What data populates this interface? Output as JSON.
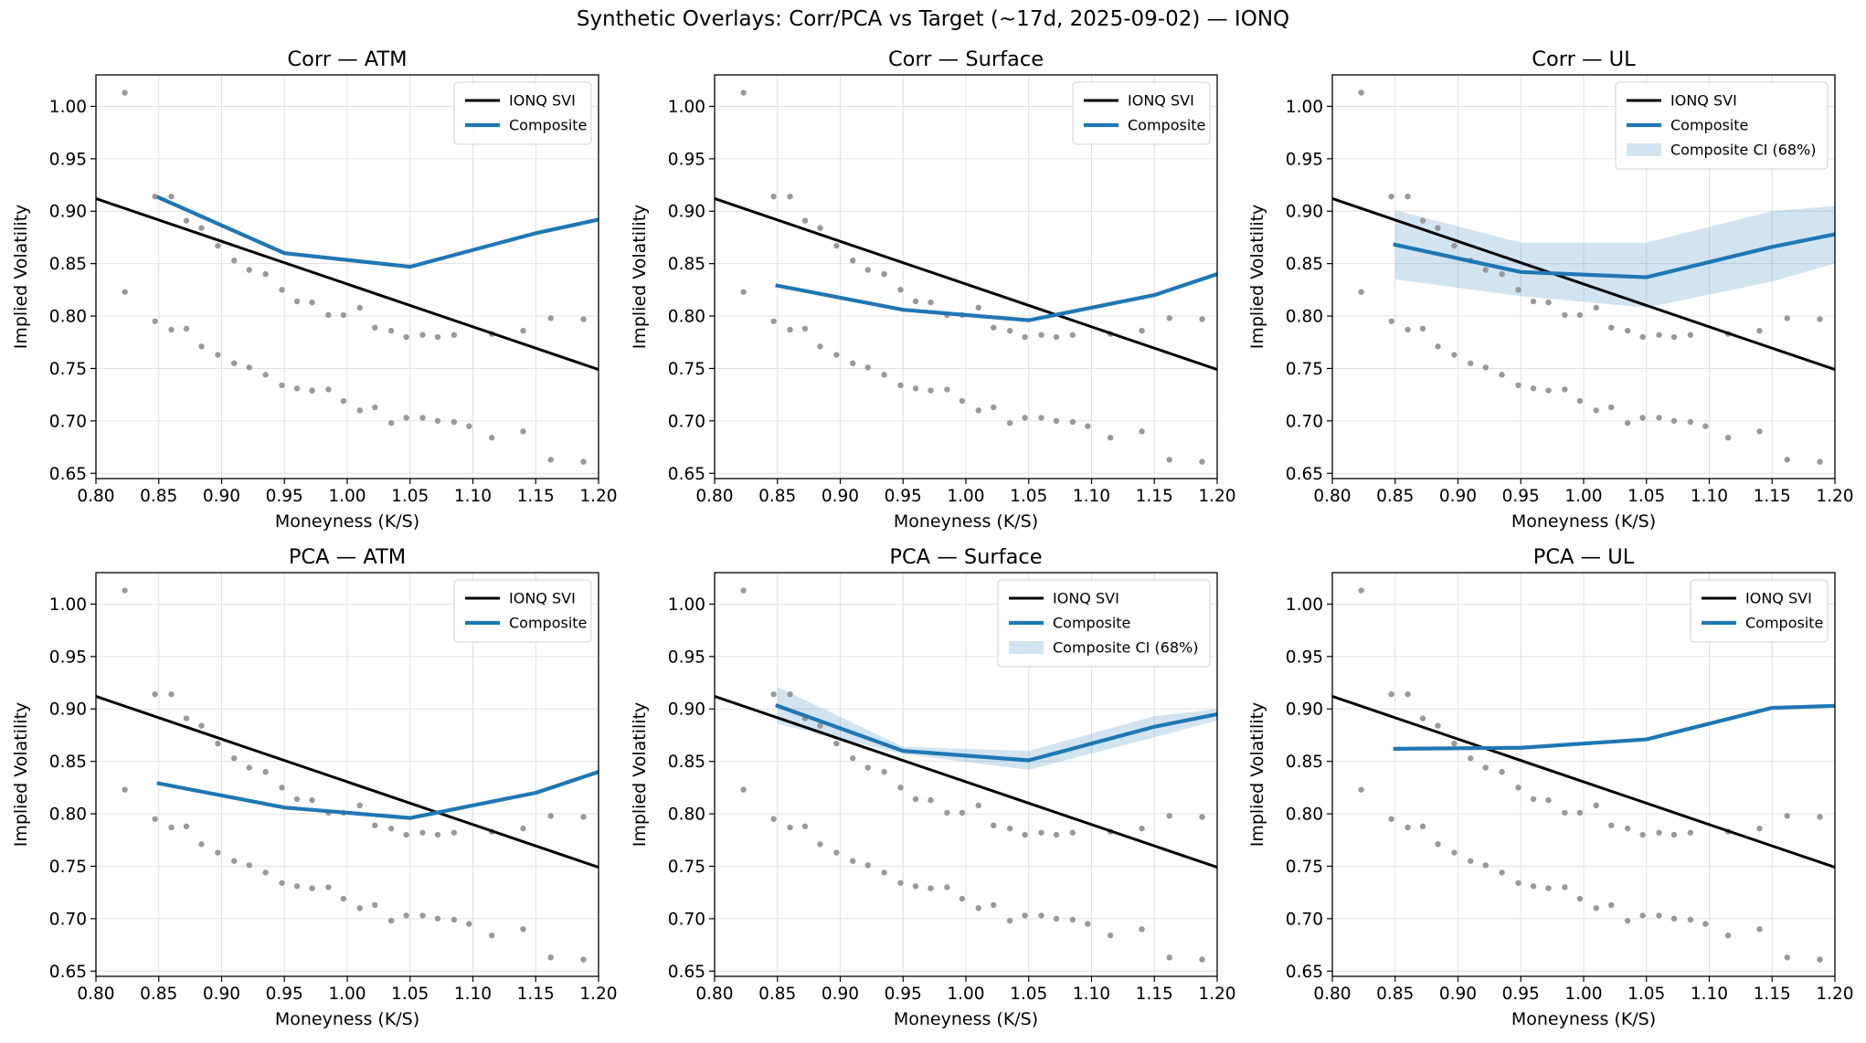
{
  "figure": {
    "suptitle": "Synthetic Overlays: Corr/PCA vs Target (~17d, 2025-09-02) — IONQ"
  },
  "colors": {
    "svi": "#000000",
    "composite": "#1f77b4",
    "ci": "#1f77b4",
    "market": "#999999",
    "grid": "#e0e0e0"
  },
  "market_points": {
    "upper": {
      "x": [
        0.823,
        0.847,
        0.86,
        0.872,
        0.884,
        0.897,
        0.91,
        0.922,
        0.935,
        0.948,
        0.96,
        0.972,
        0.985,
        0.997,
        1.01,
        1.022,
        1.035,
        1.047,
        1.06,
        1.072,
        1.085,
        1.115,
        1.14,
        1.162,
        1.188
      ],
      "y": [
        1.013,
        0.914,
        0.914,
        0.891,
        0.884,
        0.867,
        0.853,
        0.844,
        0.84,
        0.825,
        0.814,
        0.813,
        0.801,
        0.801,
        0.808,
        0.789,
        0.786,
        0.78,
        0.782,
        0.78,
        0.782,
        0.783,
        0.786,
        0.798,
        0.797
      ]
    },
    "lower": {
      "x": [
        0.823,
        0.847,
        0.86,
        0.872,
        0.884,
        0.897,
        0.91,
        0.922,
        0.935,
        0.948,
        0.96,
        0.972,
        0.985,
        0.997,
        1.01,
        1.022,
        1.035,
        1.047,
        1.06,
        1.072,
        1.085,
        1.097,
        1.115,
        1.14,
        1.162,
        1.188
      ],
      "y": [
        0.823,
        0.795,
        0.787,
        0.788,
        0.771,
        0.763,
        0.755,
        0.751,
        0.744,
        0.734,
        0.731,
        0.729,
        0.73,
        0.719,
        0.71,
        0.713,
        0.698,
        0.703,
        0.703,
        0.7,
        0.699,
        0.695,
        0.684,
        0.69,
        0.663,
        0.661
      ]
    }
  },
  "chart_data": [
    {
      "type": "line",
      "title": "Corr — ATM",
      "xlabel": "Moneyness (K/S)",
      "ylabel": "Implied Volatility",
      "xlim": [
        0.8,
        1.2
      ],
      "ylim": [
        0.645,
        1.03
      ],
      "xticks": [
        "0.80",
        "0.85",
        "0.90",
        "0.95",
        "1.00",
        "1.05",
        "1.10",
        "1.15",
        "1.20"
      ],
      "yticks": [
        "0.65",
        "0.70",
        "0.75",
        "0.80",
        "0.85",
        "0.90",
        "0.95",
        "1.00"
      ],
      "grid": true,
      "legend": "top-right",
      "series": [
        {
          "name": "IONQ SVI",
          "x": [
            0.8,
            1.2
          ],
          "y": [
            0.912,
            0.749
          ]
        },
        {
          "name": "Composite",
          "x": [
            0.85,
            0.95,
            1.05,
            1.15,
            1.2
          ],
          "y": [
            0.913,
            0.86,
            0.847,
            0.879,
            0.892
          ]
        }
      ]
    },
    {
      "type": "line",
      "title": "Corr — Surface",
      "xlabel": "Moneyness (K/S)",
      "ylabel": "Implied Volatility",
      "xlim": [
        0.8,
        1.2
      ],
      "ylim": [
        0.645,
        1.03
      ],
      "xticks": [
        "0.80",
        "0.85",
        "0.90",
        "0.95",
        "1.00",
        "1.05",
        "1.10",
        "1.15",
        "1.20"
      ],
      "yticks": [
        "0.65",
        "0.70",
        "0.75",
        "0.80",
        "0.85",
        "0.90",
        "0.95",
        "1.00"
      ],
      "grid": true,
      "legend": "top-right",
      "series": [
        {
          "name": "IONQ SVI",
          "x": [
            0.8,
            1.2
          ],
          "y": [
            0.912,
            0.749
          ]
        },
        {
          "name": "Composite",
          "x": [
            0.85,
            0.95,
            1.05,
            1.15,
            1.2
          ],
          "y": [
            0.829,
            0.806,
            0.796,
            0.82,
            0.84
          ]
        }
      ]
    },
    {
      "type": "line",
      "title": "Corr — UL",
      "xlabel": "Moneyness (K/S)",
      "ylabel": "Implied Volatility",
      "xlim": [
        0.8,
        1.2
      ],
      "ylim": [
        0.645,
        1.03
      ],
      "xticks": [
        "0.80",
        "0.85",
        "0.90",
        "0.95",
        "1.00",
        "1.05",
        "1.10",
        "1.15",
        "1.20"
      ],
      "yticks": [
        "0.65",
        "0.70",
        "0.75",
        "0.80",
        "0.85",
        "0.90",
        "0.95",
        "1.00"
      ],
      "grid": true,
      "legend": "top-right",
      "ci_label": "Composite CI (68%)",
      "ci": {
        "x": [
          0.85,
          0.95,
          1.05,
          1.15,
          1.2
        ],
        "lower": [
          0.835,
          0.819,
          0.808,
          0.833,
          0.85
        ],
        "upper": [
          0.901,
          0.87,
          0.87,
          0.9,
          0.905
        ]
      },
      "series": [
        {
          "name": "IONQ SVI",
          "x": [
            0.8,
            1.2
          ],
          "y": [
            0.912,
            0.749
          ]
        },
        {
          "name": "Composite",
          "x": [
            0.85,
            0.95,
            1.05,
            1.15,
            1.2
          ],
          "y": [
            0.868,
            0.842,
            0.837,
            0.866,
            0.878
          ]
        }
      ]
    },
    {
      "type": "line",
      "title": "PCA — ATM",
      "xlabel": "Moneyness (K/S)",
      "ylabel": "Implied Volatility",
      "xlim": [
        0.8,
        1.2
      ],
      "ylim": [
        0.645,
        1.03
      ],
      "xticks": [
        "0.80",
        "0.85",
        "0.90",
        "0.95",
        "1.00",
        "1.05",
        "1.10",
        "1.15",
        "1.20"
      ],
      "yticks": [
        "0.65",
        "0.70",
        "0.75",
        "0.80",
        "0.85",
        "0.90",
        "0.95",
        "1.00"
      ],
      "grid": true,
      "legend": "top-right",
      "series": [
        {
          "name": "IONQ SVI",
          "x": [
            0.8,
            1.2
          ],
          "y": [
            0.912,
            0.749
          ]
        },
        {
          "name": "Composite",
          "x": [
            0.85,
            0.95,
            1.05,
            1.15,
            1.2
          ],
          "y": [
            0.829,
            0.806,
            0.796,
            0.82,
            0.84
          ]
        }
      ]
    },
    {
      "type": "line",
      "title": "PCA — Surface",
      "xlabel": "Moneyness (K/S)",
      "ylabel": "Implied Volatility",
      "xlim": [
        0.8,
        1.2
      ],
      "ylim": [
        0.645,
        1.03
      ],
      "xticks": [
        "0.80",
        "0.85",
        "0.90",
        "0.95",
        "1.00",
        "1.05",
        "1.10",
        "1.15",
        "1.20"
      ],
      "yticks": [
        "0.65",
        "0.70",
        "0.75",
        "0.80",
        "0.85",
        "0.90",
        "0.95",
        "1.00"
      ],
      "grid": true,
      "legend": "top-right",
      "ci_label": "Composite CI (68%)",
      "ci": {
        "x": [
          0.85,
          0.95,
          1.05,
          1.15,
          1.2
        ],
        "lower": [
          0.886,
          0.857,
          0.842,
          0.873,
          0.889
        ],
        "upper": [
          0.921,
          0.864,
          0.86,
          0.893,
          0.9
        ]
      },
      "series": [
        {
          "name": "IONQ SVI",
          "x": [
            0.8,
            1.2
          ],
          "y": [
            0.912,
            0.749
          ]
        },
        {
          "name": "Composite",
          "x": [
            0.85,
            0.95,
            1.05,
            1.15,
            1.2
          ],
          "y": [
            0.903,
            0.86,
            0.851,
            0.883,
            0.895
          ]
        }
      ]
    },
    {
      "type": "line",
      "title": "PCA — UL",
      "xlabel": "Moneyness (K/S)",
      "ylabel": "Implied Volatility",
      "xlim": [
        0.8,
        1.2
      ],
      "ylim": [
        0.645,
        1.03
      ],
      "xticks": [
        "0.80",
        "0.85",
        "0.90",
        "0.95",
        "1.00",
        "1.05",
        "1.10",
        "1.15",
        "1.20"
      ],
      "yticks": [
        "0.65",
        "0.70",
        "0.75",
        "0.80",
        "0.85",
        "0.90",
        "0.95",
        "1.00"
      ],
      "grid": true,
      "legend": "top-right",
      "series": [
        {
          "name": "IONQ SVI",
          "x": [
            0.8,
            1.2
          ],
          "y": [
            0.912,
            0.749
          ]
        },
        {
          "name": "Composite",
          "x": [
            0.85,
            0.95,
            1.05,
            1.15,
            1.2
          ],
          "y": [
            0.862,
            0.863,
            0.871,
            0.901,
            0.903
          ]
        }
      ]
    }
  ]
}
